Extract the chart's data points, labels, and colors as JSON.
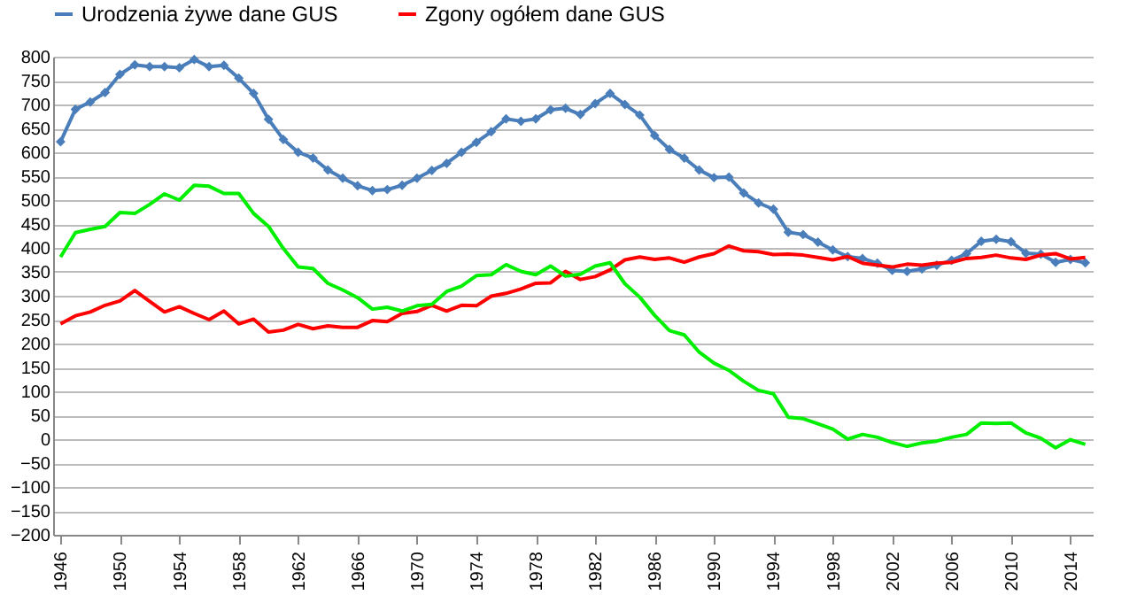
{
  "chart_data": {
    "type": "line",
    "x": [
      1946,
      1947,
      1948,
      1949,
      1950,
      1951,
      1952,
      1953,
      1954,
      1955,
      1956,
      1957,
      1958,
      1959,
      1960,
      1961,
      1962,
      1963,
      1964,
      1965,
      1966,
      1967,
      1968,
      1969,
      1970,
      1971,
      1972,
      1973,
      1974,
      1975,
      1976,
      1977,
      1978,
      1979,
      1980,
      1981,
      1982,
      1983,
      1984,
      1985,
      1986,
      1987,
      1988,
      1989,
      1990,
      1991,
      1992,
      1993,
      1994,
      1995,
      1996,
      1997,
      1998,
      1999,
      2000,
      2001,
      2002,
      2003,
      2004,
      2005,
      2006,
      2007,
      2008,
      2009,
      2010,
      2011,
      2012,
      2013,
      2014,
      2015
    ],
    "series": [
      {
        "name": "Urodzenia żywe dane GUS",
        "color": "#4a7ebb",
        "marker": "diamond",
        "values": [
          622,
          690,
          705,
          725,
          763,
          783,
          779,
          779,
          777,
          794,
          779,
          782,
          755,
          723,
          669,
          627,
          600,
          588,
          563,
          546,
          530,
          520,
          522,
          531,
          546,
          562,
          577,
          600,
          621,
          643,
          670,
          665,
          670,
          689,
          692,
          679,
          702,
          723,
          700,
          678,
          635,
          606,
          588,
          563,
          547,
          548,
          515,
          494,
          481,
          433,
          428,
          412,
          396,
          382,
          378,
          368,
          353,
          351,
          356,
          364,
          374,
          388,
          414,
          418,
          413,
          389,
          387,
          370,
          376,
          369
        ]
      },
      {
        "name": "Zgony ogółem dane GUS",
        "color": "#ff0000",
        "marker": "none",
        "values": [
          241,
          258,
          266,
          280,
          289,
          311,
          288,
          266,
          277,
          263,
          250,
          268,
          241,
          251,
          224,
          228,
          240,
          231,
          237,
          234,
          234,
          248,
          246,
          263,
          267,
          280,
          268,
          280,
          279,
          299,
          305,
          314,
          326,
          327,
          351,
          334,
          340,
          354,
          375,
          381,
          376,
          379,
          370,
          381,
          388,
          404,
          394,
          392,
          386,
          387,
          385,
          380,
          375,
          382,
          368,
          364,
          360,
          366,
          364,
          368,
          370,
          378,
          380,
          385,
          379,
          376,
          385,
          388,
          377,
          380
        ]
      },
      {
        "color": "#00ee00",
        "marker": "none",
        "values": [
          381,
          432,
          439,
          445,
          474,
          472,
          491,
          513,
          500,
          531,
          529,
          514,
          514,
          472,
          445,
          399,
          360,
          357,
          326,
          312,
          296,
          272,
          276,
          268,
          279,
          282,
          309,
          320,
          342,
          344,
          365,
          351,
          344,
          362,
          341,
          345,
          362,
          369,
          325,
          297,
          259,
          227,
          218,
          182,
          159,
          144,
          121,
          102,
          95,
          46,
          43,
          32,
          21,
          0,
          10,
          4,
          -7,
          -15,
          -8,
          -4,
          4,
          10,
          34,
          33,
          34,
          13,
          2,
          -18,
          -1,
          -11
        ]
      }
    ],
    "xlim": [
      1945.5,
      2015.5
    ],
    "xticks": [
      1946,
      1950,
      1954,
      1958,
      1962,
      1966,
      1970,
      1974,
      1978,
      1982,
      1986,
      1990,
      1994,
      1998,
      2002,
      2006,
      2010,
      2014
    ],
    "ylim": [
      -200,
      800
    ],
    "yticks": [
      -200,
      -150,
      -100,
      -50,
      0,
      50,
      100,
      150,
      200,
      250,
      300,
      350,
      400,
      450,
      500,
      550,
      600,
      650,
      700,
      750,
      800
    ],
    "grid": "y",
    "legend": "top",
    "line_style": "solid"
  }
}
